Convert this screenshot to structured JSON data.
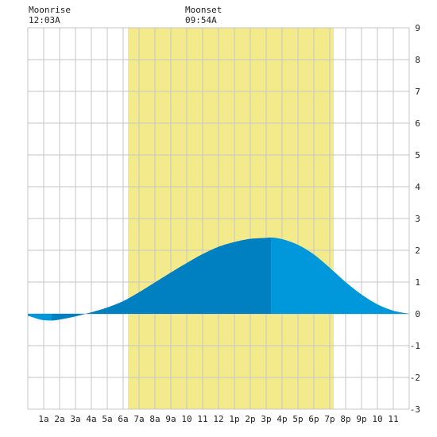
{
  "chart_data": {
    "type": "area",
    "annotations": [
      {
        "label": "Moonrise",
        "time": "12:03A",
        "hour": 0.05
      },
      {
        "label": "Moonset",
        "time": "09:54A",
        "hour": 9.9
      }
    ],
    "daylight": {
      "start_hour": 6.3,
      "end_hour": 19.25,
      "color": "#f3eb8b"
    },
    "x_ticks": [
      {
        "hour": 1,
        "label": "1a"
      },
      {
        "hour": 2,
        "label": "2a"
      },
      {
        "hour": 3,
        "label": "3a"
      },
      {
        "hour": 4,
        "label": "4a"
      },
      {
        "hour": 5,
        "label": "5a"
      },
      {
        "hour": 6,
        "label": "6a"
      },
      {
        "hour": 7,
        "label": "7a"
      },
      {
        "hour": 8,
        "label": "8a"
      },
      {
        "hour": 9,
        "label": "9a"
      },
      {
        "hour": 10,
        "label": "10"
      },
      {
        "hour": 11,
        "label": "11"
      },
      {
        "hour": 12,
        "label": "12"
      },
      {
        "hour": 13,
        "label": "1p"
      },
      {
        "hour": 14,
        "label": "2p"
      },
      {
        "hour": 15,
        "label": "3p"
      },
      {
        "hour": 16,
        "label": "4p"
      },
      {
        "hour": 17,
        "label": "5p"
      },
      {
        "hour": 18,
        "label": "6p"
      },
      {
        "hour": 19,
        "label": "7p"
      },
      {
        "hour": 20,
        "label": "8p"
      },
      {
        "hour": 21,
        "label": "9p"
      },
      {
        "hour": 22,
        "label": "10"
      },
      {
        "hour": 23,
        "label": "11"
      }
    ],
    "y_ticks": [
      -3,
      -2,
      -1,
      0,
      1,
      2,
      3,
      4,
      5,
      6,
      7,
      8,
      9
    ],
    "xlim": [
      0,
      24
    ],
    "ylim": [
      -3,
      9
    ],
    "grid": true,
    "tide": {
      "hours": [
        0,
        1,
        1.5,
        2,
        3,
        4,
        5,
        6,
        7,
        8,
        9,
        10,
        11,
        12,
        13,
        14,
        15,
        15.3,
        16,
        17,
        18,
        19,
        20,
        21,
        22,
        23,
        24
      ],
      "heights": [
        -0.06,
        -0.2,
        -0.21,
        -0.18,
        -0.08,
        0.05,
        0.2,
        0.4,
        0.68,
        0.99,
        1.3,
        1.6,
        1.88,
        2.11,
        2.26,
        2.36,
        2.39,
        2.4,
        2.35,
        2.17,
        1.87,
        1.45,
        1.0,
        0.61,
        0.3,
        0.1,
        0.0
      ],
      "rising_color": "#0080c0",
      "falling_color": "#0098da",
      "low_tide_hour": 1.5,
      "high_tide_hour": 15.3
    }
  }
}
